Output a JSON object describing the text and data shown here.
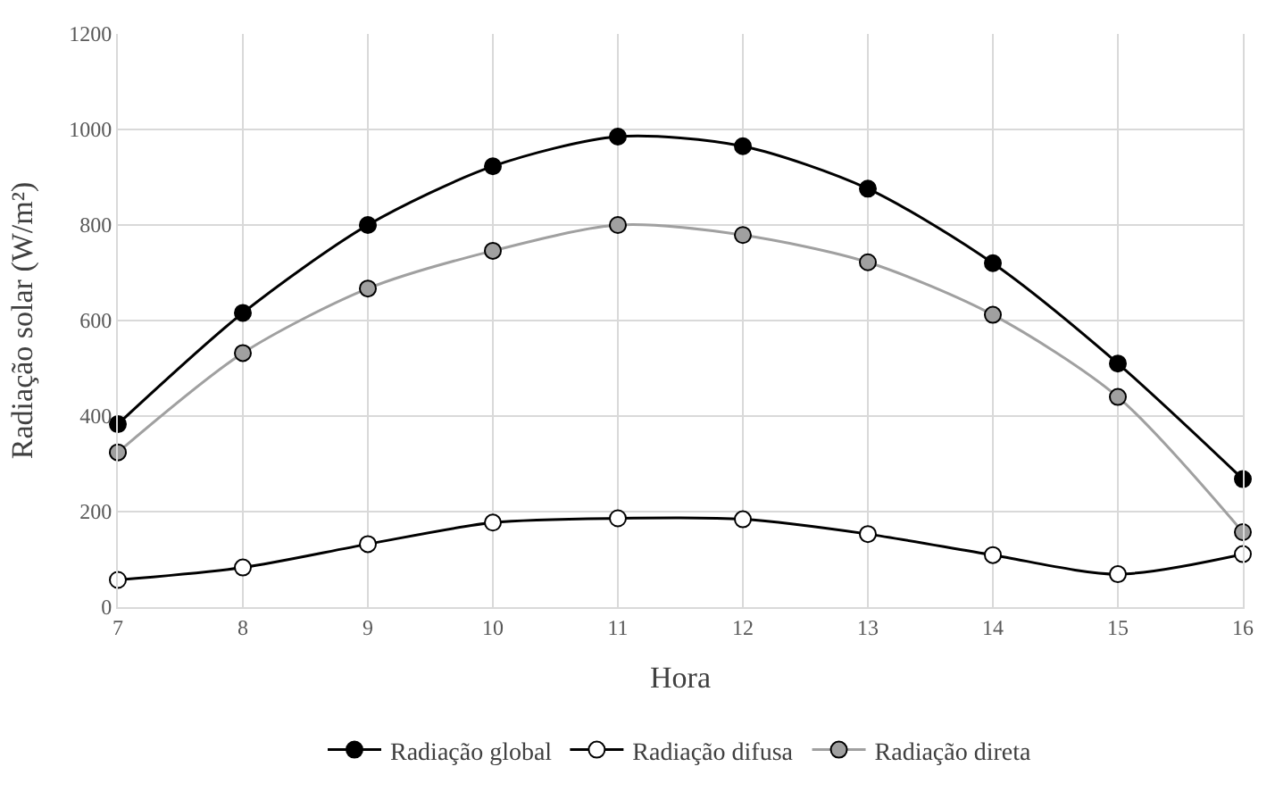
{
  "chart_data": {
    "type": "line",
    "xlabel": "Hora",
    "ylabel": "Radiação solar (W/m²)",
    "x": [
      7,
      8,
      9,
      10,
      11,
      12,
      13,
      14,
      15,
      16
    ],
    "series": [
      {
        "name": "Radiação global",
        "color": "#000000",
        "values": [
          383,
          616,
          800,
          923,
          985,
          965,
          876,
          720,
          510,
          268
        ]
      },
      {
        "name": "Radiação difusa",
        "color": "#ffffff",
        "values": [
          57,
          83,
          132,
          177,
          186,
          184,
          153,
          109,
          69,
          111
        ]
      },
      {
        "name": "Radiação direta",
        "color": "#a0a0a0",
        "values": [
          324,
          532,
          667,
          746,
          800,
          779,
          722,
          612,
          440,
          157
        ]
      }
    ],
    "xlim": [
      7,
      16
    ],
    "xticks": [
      7,
      8,
      9,
      10,
      11,
      12,
      13,
      14,
      15,
      16
    ],
    "ylim": [
      0,
      1200
    ],
    "yticks": [
      0,
      200,
      400,
      600,
      800,
      1000,
      1200
    ],
    "grid": true,
    "legend": "bottom",
    "marker": "circle",
    "line_style": "solid"
  }
}
